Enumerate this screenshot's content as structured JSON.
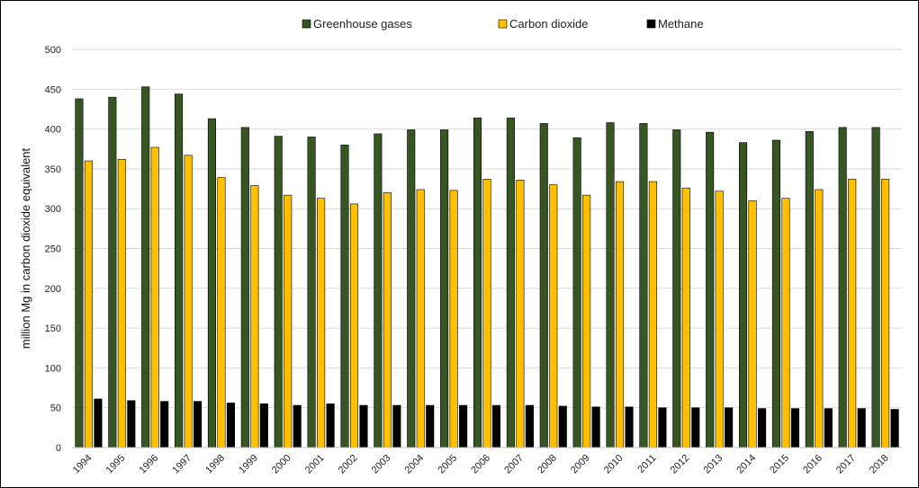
{
  "chart_data": {
    "type": "bar",
    "title": "",
    "xlabel": "",
    "ylabel": "million Mg in carbon dioxide equivalent",
    "ylim": [
      0,
      500
    ],
    "yticks": [
      0,
      50,
      100,
      150,
      200,
      250,
      300,
      350,
      400,
      450,
      500
    ],
    "grid": true,
    "legend_position": "top-center",
    "categories": [
      "1994",
      "1995",
      "1996",
      "1997",
      "1998",
      "1999",
      "2000",
      "2001",
      "2002",
      "2003",
      "2004",
      "2005",
      "2006",
      "2007",
      "2008",
      "2009",
      "2010",
      "2011",
      "2012",
      "2013",
      "2014",
      "2015",
      "2016",
      "2017",
      "2018"
    ],
    "series": [
      {
        "name": "Greenhouse gases",
        "color": "#375623",
        "values": [
          438,
          440,
          453,
          444,
          413,
          402,
          391,
          390,
          380,
          394,
          399,
          399,
          414,
          414,
          407,
          389,
          408,
          407,
          399,
          396,
          383,
          386,
          397,
          402,
          402
        ]
      },
      {
        "name": "Carbon dioxide",
        "color": "#FFC000",
        "values": [
          360,
          362,
          377,
          367,
          339,
          329,
          317,
          313,
          306,
          320,
          324,
          323,
          337,
          336,
          330,
          317,
          334,
          334,
          326,
          322,
          310,
          313,
          324,
          337,
          337
        ]
      },
      {
        "name": "Methane",
        "color": "#000000",
        "values": [
          61,
          59,
          58,
          58,
          56,
          55,
          53,
          55,
          53,
          53,
          53,
          53,
          53,
          53,
          52,
          51,
          51,
          50,
          50,
          50,
          49,
          49,
          49,
          49,
          48
        ]
      }
    ]
  }
}
